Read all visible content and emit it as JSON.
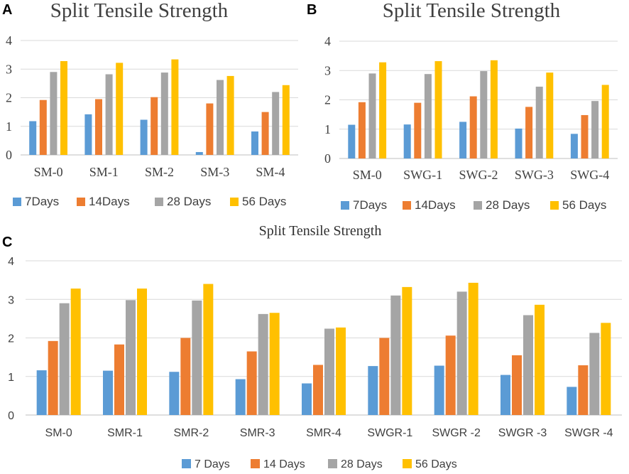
{
  "chart_data": [
    {
      "panel": "A",
      "type": "bar",
      "title": "Split Tensile Strength",
      "categories": [
        "SM-0",
        "SM-1",
        "SM-2",
        "SM-3",
        "SM-4"
      ],
      "series": [
        {
          "name": "7Days",
          "color": "#5b9bd5",
          "values": [
            1.18,
            1.42,
            1.23,
            0.1,
            0.82
          ]
        },
        {
          "name": "14Days",
          "color": "#ed7d31",
          "values": [
            1.92,
            1.95,
            2.02,
            1.8,
            1.5
          ]
        },
        {
          "name": "28 Days",
          "color": "#a5a5a5",
          "values": [
            2.9,
            2.82,
            2.88,
            2.62,
            2.2
          ]
        },
        {
          "name": "56 Days",
          "color": "#ffc000",
          "values": [
            3.28,
            3.22,
            3.34,
            2.76,
            2.44
          ]
        }
      ],
      "yticks": [
        "0",
        "1",
        "2",
        "3",
        "4"
      ],
      "ylim": [
        0,
        4
      ],
      "legend": "bottom"
    },
    {
      "panel": "B",
      "type": "bar",
      "title": "Split Tensile Strength",
      "categories": [
        "SM-0",
        "SWG-1",
        "SWG-2",
        "SWG-3",
        "SWG-4"
      ],
      "series": [
        {
          "name": "7Days",
          "color": "#5b9bd5",
          "values": [
            1.15,
            1.16,
            1.25,
            1.02,
            0.84
          ]
        },
        {
          "name": "14Days",
          "color": "#ed7d31",
          "values": [
            1.92,
            1.9,
            2.12,
            1.76,
            1.48
          ]
        },
        {
          "name": "28 Days",
          "color": "#a5a5a5",
          "values": [
            2.9,
            2.88,
            2.98,
            2.45,
            1.96
          ]
        },
        {
          "name": "56 Days",
          "color": "#ffc000",
          "values": [
            3.28,
            3.32,
            3.35,
            2.93,
            2.51
          ]
        }
      ],
      "yticks": [
        "0",
        "1",
        "2",
        "3",
        "4"
      ],
      "ylim": [
        0,
        4
      ],
      "legend": "bottom"
    },
    {
      "panel": "C",
      "type": "bar",
      "title": "Split Tensile Strength",
      "categories": [
        "SM-0",
        "SMR-1",
        "SMR-2",
        "SMR-3",
        "SMR-4",
        "SWGR-1",
        "SWGR -2",
        "SWGR -3",
        "SWGR -4"
      ],
      "series": [
        {
          "name": "7 Days",
          "color": "#5b9bd5",
          "values": [
            1.16,
            1.15,
            1.12,
            0.93,
            0.82,
            1.27,
            1.28,
            1.04,
            0.73
          ]
        },
        {
          "name": "14 Days",
          "color": "#ed7d31",
          "values": [
            1.92,
            1.83,
            2.0,
            1.65,
            1.3,
            2.0,
            2.06,
            1.55,
            1.29
          ]
        },
        {
          "name": "28 Days",
          "color": "#a5a5a5",
          "values": [
            2.9,
            2.98,
            2.97,
            2.62,
            2.24,
            3.1,
            3.2,
            2.59,
            2.13
          ]
        },
        {
          "name": "56 Days",
          "color": "#ffc000",
          "values": [
            3.28,
            3.28,
            3.4,
            2.65,
            2.27,
            3.32,
            3.43,
            2.86,
            2.39
          ]
        }
      ],
      "yticks": [
        "0",
        "1",
        "2",
        "3",
        "4"
      ],
      "ylim": [
        0,
        4
      ],
      "legend": "bottom"
    }
  ]
}
